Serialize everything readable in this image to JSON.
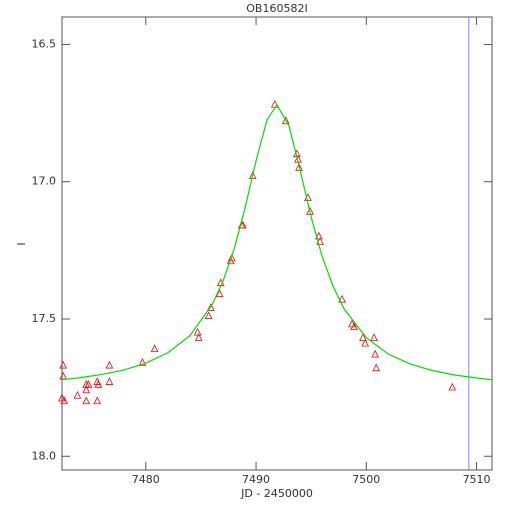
{
  "chart_data": {
    "type": "scatter",
    "title": "OB160582I",
    "x_label": "JD - 2450000",
    "y_label": "I",
    "xlim": [
      7472.4,
      7511.4
    ],
    "ylim": [
      16.4,
      18.05
    ],
    "y_inverted": true,
    "xticks": [
      7480,
      7490,
      7500,
      7510
    ],
    "yticks": [
      16.5,
      {
        "value": 17,
        "label": "17.0"
      },
      17.5,
      {
        "value": 18,
        "label": "18.0"
      }
    ],
    "grid": false,
    "vline": {
      "x": 7509.3,
      "color": "#8080ff"
    },
    "series": [
      {
        "type": "scatter",
        "marker": "triangle",
        "color": "#ff0000",
        "x": [
          7472.5,
          7472.5,
          7472.4,
          7472.6,
          7473.8,
          7474.6,
          7474.6,
          7474.6,
          7474.8,
          7475.6,
          7475.6,
          7475.7,
          7476.7,
          7476.7,
          7479.7,
          7480.8,
          7484.7,
          7484.8,
          7485.7,
          7485.9,
          7486.7,
          7486.8,
          7487.7,
          7487.8,
          7488.7,
          7488.8,
          7489.7,
          7491.7,
          7492.7,
          7493.7,
          7493.8,
          7493.9,
          7494.7,
          7494.9,
          7495.7,
          7495.8,
          7497.8,
          7498.7,
          7498.9,
          7499.7,
          7499.9,
          7500.7,
          7500.8,
          7500.9,
          7507.8
        ],
        "values": [
          17.67,
          17.71,
          17.79,
          17.8,
          17.78,
          17.74,
          17.76,
          17.8,
          17.74,
          17.73,
          17.8,
          17.74,
          17.67,
          17.73,
          17.66,
          17.61,
          17.55,
          17.57,
          17.49,
          17.46,
          17.41,
          17.37,
          17.29,
          17.28,
          17.16,
          17.16,
          16.98,
          16.72,
          16.78,
          16.9,
          16.92,
          16.95,
          17.06,
          17.11,
          17.2,
          17.22,
          17.43,
          17.52,
          17.53,
          17.57,
          17.59,
          17.57,
          17.63,
          17.68,
          17.75
        ]
      },
      {
        "type": "line",
        "color": "#00e000",
        "x": [
          7472.4,
          7474,
          7476,
          7478,
          7480,
          7482,
          7484,
          7486,
          7487,
          7488,
          7489,
          7490,
          7491,
          7491.9,
          7493,
          7494,
          7495,
          7496,
          7497,
          7498,
          7500,
          7502,
          7504,
          7506,
          7508,
          7510,
          7511.4
        ],
        "values": [
          17.721,
          17.714,
          17.702,
          17.686,
          17.661,
          17.623,
          17.561,
          17.449,
          17.363,
          17.247,
          17.096,
          16.924,
          16.774,
          16.72,
          16.798,
          16.958,
          17.129,
          17.273,
          17.382,
          17.464,
          17.568,
          17.628,
          17.664,
          17.688,
          17.704,
          17.715,
          17.721
        ]
      }
    ]
  }
}
